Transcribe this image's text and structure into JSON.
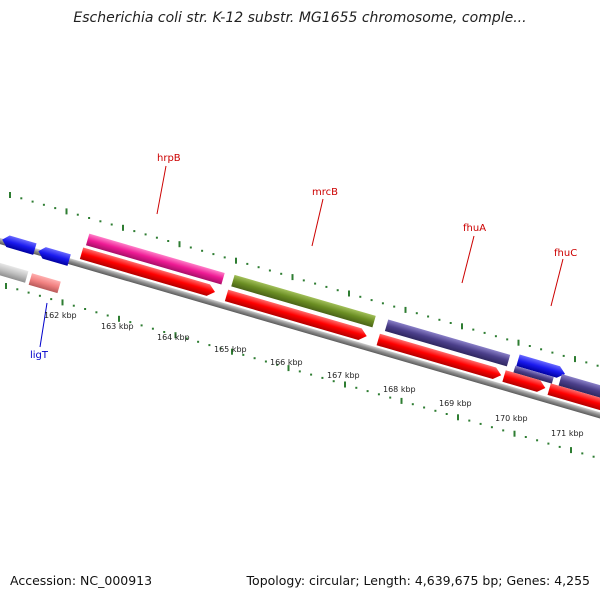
{
  "header": {
    "title": "Escherichia coli str. K-12 substr. MG1655 chromosome, comple..."
  },
  "footer": {
    "accession_label": "Accession:",
    "accession": "NC_000913",
    "topology_label": "Topology:",
    "topology": "circular",
    "length_label": "Length:",
    "length": "4,639,675 bp",
    "genes_label": "Genes:",
    "genes": "4,255"
  },
  "ruler": {
    "ticks": [
      "162 kbp",
      "163 kbp",
      "164 kbp",
      "165 kbp",
      "166 kbp",
      "167 kbp",
      "168 kbp",
      "169 kbp",
      "170 kbp",
      "171 kbp"
    ]
  },
  "genes": [
    {
      "name": "hrpB",
      "color": "#cc0000"
    },
    {
      "name": "mrcB",
      "color": "#cc0000"
    },
    {
      "name": "fhuA",
      "color": "#cc0000"
    },
    {
      "name": "fhuC",
      "color": "#cc0000"
    },
    {
      "name": "ligT",
      "color": "#0000cc"
    }
  ],
  "colors": {
    "backbone": "#8a8a8a",
    "tick": "#2e7d32",
    "cds": "#ff0000",
    "hrpB_feature": "#ee1a94",
    "mrcB_feature": "#6b8e23",
    "fhuA_feature": "#4b3f8a",
    "fhuC_feature": "#1a1aee",
    "ligT_feature": "#1a1aee",
    "minus_feature": "#c0c0c0",
    "pink_feature": "#f08080"
  }
}
